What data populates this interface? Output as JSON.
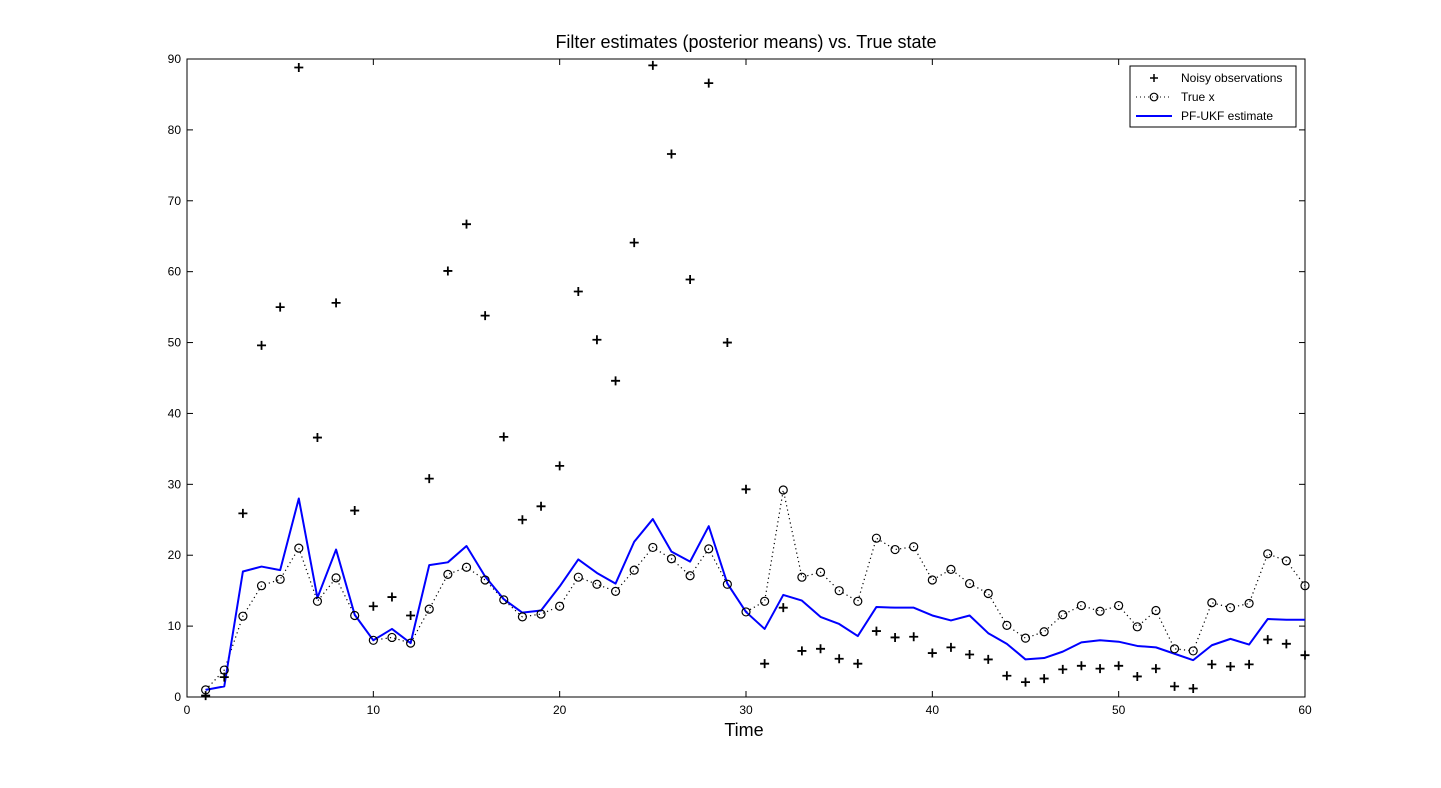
{
  "chart_data": {
    "type": "scatter",
    "title": "Filter estimates (posterior means) vs. True state",
    "xlabel": "Time",
    "ylabel": "",
    "xlim": [
      0,
      60
    ],
    "ylim": [
      0,
      90
    ],
    "xticks": [
      0,
      10,
      20,
      30,
      40,
      50,
      60
    ],
    "yticks": [
      0,
      10,
      20,
      30,
      40,
      50,
      60,
      70,
      80,
      90
    ],
    "grid": false,
    "legend_position": "top-right",
    "x": [
      1,
      2,
      3,
      4,
      5,
      6,
      7,
      8,
      9,
      10,
      11,
      12,
      13,
      14,
      15,
      16,
      17,
      18,
      19,
      20,
      21,
      22,
      23,
      24,
      25,
      26,
      27,
      28,
      29,
      30,
      31,
      32,
      33,
      34,
      35,
      36,
      37,
      38,
      39,
      40,
      41,
      42,
      43,
      44,
      45,
      46,
      47,
      48,
      49,
      50,
      51,
      52,
      53,
      54,
      55,
      56,
      57,
      58,
      59,
      60
    ],
    "series": [
      {
        "name": "Noisy observations",
        "marker": "plus",
        "line": "none",
        "color": "#000000",
        "values": [
          0.2,
          2.8,
          25.9,
          49.6,
          55.0,
          88.8,
          36.6,
          55.6,
          26.3,
          12.8,
          14.1,
          11.5,
          30.8,
          60.1,
          66.7,
          53.8,
          36.7,
          25.0,
          26.9,
          32.6,
          57.2,
          50.4,
          44.6,
          64.1,
          89.1,
          76.6,
          58.9,
          86.6,
          50.0,
          29.3,
          4.7,
          12.6,
          6.5,
          6.8,
          5.4,
          4.7,
          9.3,
          8.4,
          8.5,
          6.2,
          7.0,
          6.0,
          5.3,
          3.0,
          2.1,
          2.6,
          3.9,
          4.4,
          4.0,
          4.4,
          2.9,
          4.0,
          1.5,
          1.2,
          4.6,
          4.3,
          4.6,
          8.1,
          7.5,
          5.9
        ]
      },
      {
        "name": "True x",
        "marker": "circle",
        "line": "dotted",
        "color": "#000000",
        "values": [
          1.0,
          3.8,
          11.4,
          15.7,
          16.6,
          21.0,
          13.5,
          16.8,
          11.5,
          8.0,
          8.4,
          7.6,
          12.4,
          17.3,
          18.3,
          16.5,
          13.7,
          11.3,
          11.7,
          12.8,
          16.9,
          15.9,
          14.9,
          17.9,
          21.1,
          19.5,
          17.1,
          20.9,
          15.9,
          12.0,
          13.5,
          29.2,
          16.9,
          17.6,
          15.0,
          13.5,
          22.4,
          20.8,
          21.2,
          16.5,
          18.0,
          16.0,
          14.6,
          10.1,
          8.3,
          9.2,
          11.6,
          12.9,
          12.1,
          12.9,
          9.9,
          12.2,
          6.8,
          6.5,
          13.3,
          12.6,
          13.2,
          20.2,
          19.2,
          15.7
        ]
      },
      {
        "name": "PF-UKF estimate",
        "marker": "none",
        "line": "solid",
        "color": "#0000ff",
        "values": [
          1.0,
          1.5,
          17.7,
          18.4,
          17.9,
          28.0,
          14.0,
          20.8,
          11.6,
          8.0,
          9.6,
          7.6,
          18.6,
          19.0,
          21.3,
          17.0,
          13.8,
          11.9,
          12.2,
          15.6,
          19.4,
          17.5,
          16.0,
          21.9,
          25.1,
          20.5,
          19.1,
          24.1,
          16.0,
          12.0,
          9.6,
          14.4,
          13.6,
          11.3,
          10.3,
          8.6,
          12.7,
          12.6,
          12.6,
          11.5,
          10.8,
          11.5,
          9.0,
          7.5,
          5.3,
          5.5,
          6.4,
          7.7,
          8.0,
          7.8,
          7.2,
          7.0,
          6.1,
          5.2,
          7.3,
          8.2,
          7.4,
          11.0,
          10.9,
          10.9
        ]
      }
    ]
  }
}
